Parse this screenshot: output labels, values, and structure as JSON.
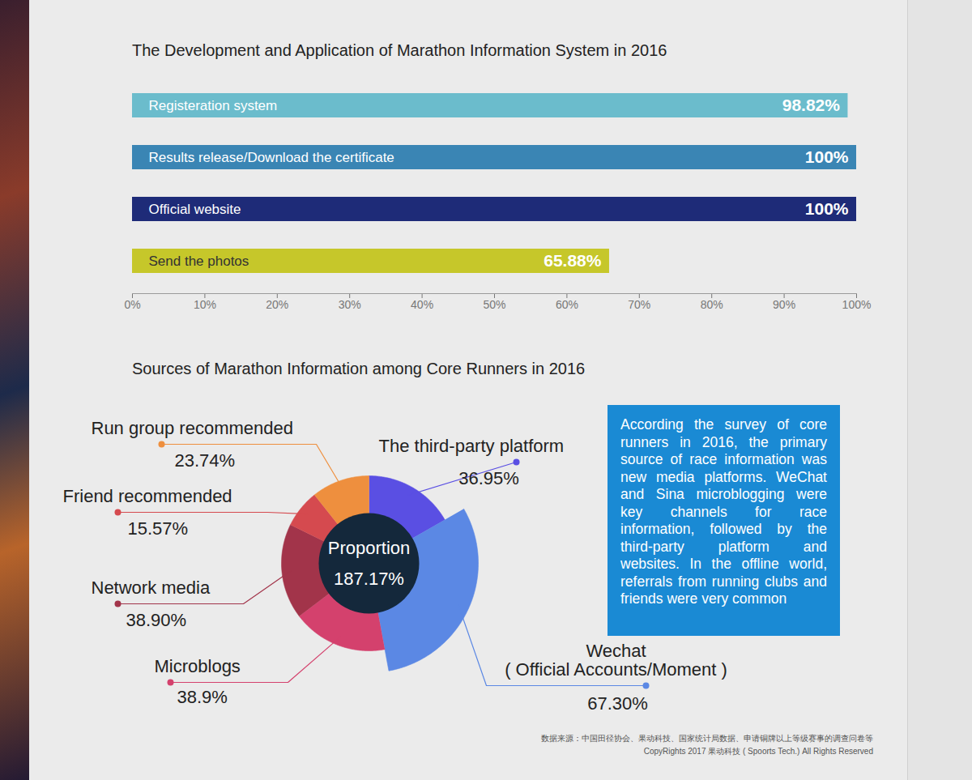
{
  "chart_data": [
    {
      "type": "bar",
      "title": "The Development and Application of Marathon Information System in 2016",
      "orientation": "horizontal",
      "categories": [
        "Registeration system",
        "Results release/Download the certificate",
        "Official website",
        "Send the photos"
      ],
      "values": [
        98.82,
        100,
        100,
        65.88
      ],
      "value_labels": [
        "98.82%",
        "100%",
        "100%",
        "65.88%"
      ],
      "colors": [
        "#6bbccc",
        "#3a85b4",
        "#1e2b78",
        "#c6c72a"
      ],
      "xlim": [
        0,
        100
      ],
      "xticks": [
        {
          "value": 0,
          "label": "0%"
        },
        {
          "value": 10,
          "label": "10%"
        },
        {
          "value": 20,
          "label": "20%"
        },
        {
          "value": 30,
          "label": "30%"
        },
        {
          "value": 40,
          "label": "40%"
        },
        {
          "value": 50,
          "label": "50%"
        },
        {
          "value": 60,
          "label": "60%"
        },
        {
          "value": 70,
          "label": "70%"
        },
        {
          "value": 80,
          "label": "80%"
        },
        {
          "value": 90,
          "label": "90%"
        },
        {
          "value": 100,
          "label": "100%"
        }
      ],
      "grid": false,
      "data_labels": true,
      "tick_labels": "x"
    },
    {
      "type": "pie",
      "title": "Sources of Marathon Information among Core Runners in 2016",
      "categories": [
        "The third-party platform",
        "Wechat\n( Official Accounts/Moment )",
        "Microblogs",
        "Network media",
        "Friend recommended",
        "Run group recommended"
      ],
      "values": [
        36.95,
        67.3,
        38.9,
        38.9,
        15.57,
        23.74
      ],
      "value_labels": [
        "36.95%",
        "67.30%",
        "38.9%",
        "38.90%",
        "15.57%",
        "23.74%"
      ],
      "colors": [
        "#5a4fe3",
        "#5b88e4",
        "#d4416d",
        "#a2344a",
        "#d54a4f",
        "#ee8f3e"
      ],
      "data_labels": true,
      "center_text": [
        "Proportion",
        "187.17%"
      ],
      "annotations": [
        "According the survey of core runners in 2016, the primary source of race information was new media platforms. WeChat and Sina microblogging were key channels for race information, followed by the third-party platform and websites. In the offline world, referrals from running clubs and friends were very common"
      ]
    }
  ],
  "footer": [
    "数据来源：中国田径协会、果动科技、国家统计局数据、申请铜牌以上等级赛事的调查问卷等",
    "CopyRights 2017 果动科技 ( Spoorts Tech.) All Rights Reserved"
  ]
}
